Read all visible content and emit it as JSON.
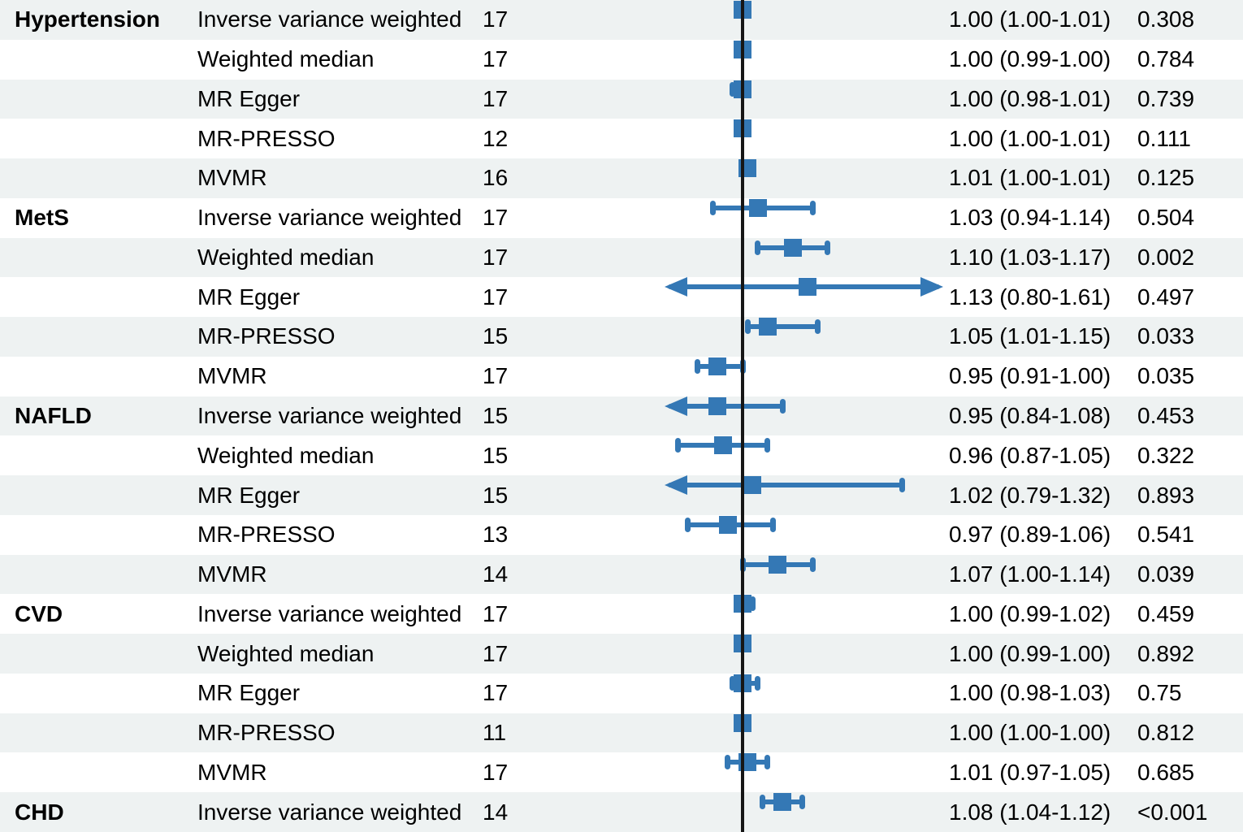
{
  "chart_data": {
    "type": "forest",
    "axis": {
      "scale": "linear",
      "xmin": 0.85,
      "xmax": 1.395,
      "ref": 1.0,
      "grid": false
    },
    "colors": {
      "marker": "#3478b5",
      "band": "#eef2f2",
      "refline": "#161616",
      "text": "#000000"
    },
    "rows": [
      {
        "outcome": "Hypertension",
        "method": "Inverse variance weighted",
        "nsnp": "17",
        "or": 1.0,
        "lo": 1.0,
        "hi": 1.01,
        "or_ci": "1.00 (1.00-1.01)",
        "p": "0.308"
      },
      {
        "outcome": "",
        "method": "Weighted median",
        "nsnp": "17",
        "or": 1.0,
        "lo": 0.99,
        "hi": 1.0,
        "or_ci": "1.00 (0.99-1.00)",
        "p": "0.784"
      },
      {
        "outcome": "",
        "method": "MR Egger",
        "nsnp": "17",
        "or": 1.0,
        "lo": 0.98,
        "hi": 1.01,
        "or_ci": "1.00 (0.98-1.01)",
        "p": "0.739"
      },
      {
        "outcome": "",
        "method": "MR-PRESSO",
        "nsnp": "12",
        "or": 1.0,
        "lo": 1.0,
        "hi": 1.01,
        "or_ci": "1.00 (1.00-1.01)",
        "p": "0.111"
      },
      {
        "outcome": "",
        "method": "MVMR",
        "nsnp": "16",
        "or": 1.01,
        "lo": 1.0,
        "hi": 1.01,
        "or_ci": "1.01 (1.00-1.01)",
        "p": "0.125"
      },
      {
        "outcome": "MetS",
        "method": "Inverse variance weighted",
        "nsnp": "17",
        "or": 1.03,
        "lo": 0.94,
        "hi": 1.14,
        "or_ci": "1.03 (0.94-1.14)",
        "p": "0.504"
      },
      {
        "outcome": "",
        "method": "Weighted median",
        "nsnp": "17",
        "or": 1.1,
        "lo": 1.03,
        "hi": 1.17,
        "or_ci": "1.10 (1.03-1.17)",
        "p": "0.002"
      },
      {
        "outcome": "",
        "method": "MR Egger",
        "nsnp": "17",
        "or": 1.13,
        "lo": 0.8,
        "hi": 1.61,
        "or_ci": "1.13 (0.80-1.61)",
        "p": "0.497"
      },
      {
        "outcome": "",
        "method": "MR-PRESSO",
        "nsnp": "15",
        "or": 1.05,
        "lo": 1.01,
        "hi": 1.15,
        "or_ci": "1.05 (1.01-1.15)",
        "p": "0.033"
      },
      {
        "outcome": "",
        "method": "MVMR",
        "nsnp": "17",
        "or": 0.95,
        "lo": 0.91,
        "hi": 1.0,
        "or_ci": "0.95 (0.91-1.00)",
        "p": "0.035"
      },
      {
        "outcome": "NAFLD",
        "method": "Inverse variance weighted",
        "nsnp": "15",
        "or": 0.95,
        "lo": 0.84,
        "hi": 1.08,
        "or_ci": "0.95 (0.84-1.08)",
        "p": "0.453"
      },
      {
        "outcome": "",
        "method": "Weighted median",
        "nsnp": "15",
        "or": 0.96,
        "lo": 0.87,
        "hi": 1.05,
        "or_ci": "0.96 (0.87-1.05)",
        "p": "0.322"
      },
      {
        "outcome": "",
        "method": "MR Egger",
        "nsnp": "15",
        "or": 1.02,
        "lo": 0.79,
        "hi": 1.32,
        "or_ci": "1.02 (0.79-1.32)",
        "p": "0.893"
      },
      {
        "outcome": "",
        "method": "MR-PRESSO",
        "nsnp": "13",
        "or": 0.97,
        "lo": 0.89,
        "hi": 1.06,
        "or_ci": "0.97 (0.89-1.06)",
        "p": "0.541"
      },
      {
        "outcome": "",
        "method": "MVMR",
        "nsnp": "14",
        "or": 1.07,
        "lo": 1.0,
        "hi": 1.14,
        "or_ci": "1.07 (1.00-1.14)",
        "p": "0.039"
      },
      {
        "outcome": "CVD",
        "method": "Inverse variance weighted",
        "nsnp": "17",
        "or": 1.0,
        "lo": 0.99,
        "hi": 1.02,
        "or_ci": "1.00 (0.99-1.02)",
        "p": "0.459"
      },
      {
        "outcome": "",
        "method": "Weighted median",
        "nsnp": "17",
        "or": 1.0,
        "lo": 0.99,
        "hi": 1.0,
        "or_ci": "1.00 (0.99-1.00)",
        "p": "0.892"
      },
      {
        "outcome": "",
        "method": "MR Egger",
        "nsnp": "17",
        "or": 1.0,
        "lo": 0.98,
        "hi": 1.03,
        "or_ci": "1.00 (0.98-1.03)",
        "p": "0.75"
      },
      {
        "outcome": "",
        "method": "MR-PRESSO",
        "nsnp": "11",
        "or": 1.0,
        "lo": 1.0,
        "hi": 1.0,
        "or_ci": "1.00 (1.00-1.00)",
        "p": "0.812"
      },
      {
        "outcome": "",
        "method": "MVMR",
        "nsnp": "17",
        "or": 1.01,
        "lo": 0.97,
        "hi": 1.05,
        "or_ci": "1.01 (0.97-1.05)",
        "p": "0.685"
      },
      {
        "outcome": "CHD",
        "method": "Inverse variance weighted",
        "nsnp": "14",
        "or": 1.08,
        "lo": 1.04,
        "hi": 1.12,
        "or_ci": "1.08 (1.04-1.12)",
        "p": "<0.001"
      }
    ]
  }
}
